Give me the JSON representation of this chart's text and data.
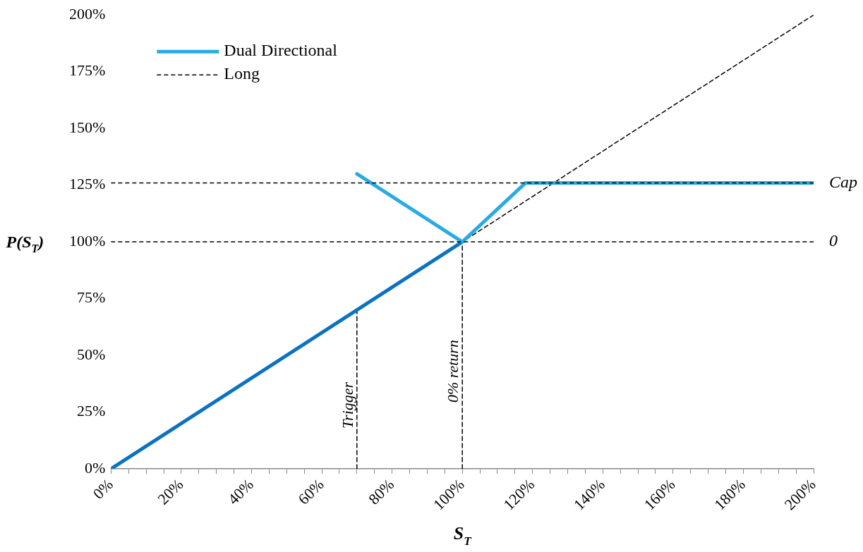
{
  "chart_data": {
    "type": "line",
    "xlabel": "S$_{T}$",
    "ylabel": "P(S$_{T}$)",
    "series": [
      {
        "name": "Dual Directional",
        "color": "#29abe2",
        "x": [
          70,
          100,
          118,
          200
        ],
        "values": [
          130,
          100,
          126,
          126
        ],
        "line_style": "solid"
      },
      {
        "color": "#0b72c2",
        "x": [
          0,
          100
        ],
        "values": [
          0,
          100
        ],
        "line_style": "solid"
      },
      {
        "name": "Long",
        "color": "#000000",
        "x": [
          0,
          200
        ],
        "values": [
          0,
          200
        ],
        "line_style": "dashed"
      },
      {
        "color": "#000000",
        "x": [
          70,
          70
        ],
        "values": [
          0,
          70
        ],
        "line_style": "dashed"
      },
      {
        "color": "#000000",
        "x": [
          100,
          100
        ],
        "values": [
          0,
          100
        ],
        "line_style": "dashed"
      }
    ],
    "xlim": [
      0,
      200
    ],
    "xticks": [
      {
        "value": 0,
        "label": "0%"
      },
      {
        "value": 5,
        "label": null
      },
      {
        "value": 10,
        "label": null
      },
      {
        "value": 15,
        "label": null
      },
      {
        "value": 20,
        "label": "20%"
      },
      {
        "value": 25,
        "label": null
      },
      {
        "value": 30,
        "label": null
      },
      {
        "value": 35,
        "label": null
      },
      {
        "value": 40,
        "label": "40%"
      },
      {
        "value": 45,
        "label": null
      },
      {
        "value": 50,
        "label": null
      },
      {
        "value": 55,
        "label": null
      },
      {
        "value": 60,
        "label": "60%"
      },
      {
        "value": 65,
        "label": null
      },
      {
        "value": 70,
        "label": null
      },
      {
        "value": 75,
        "label": null
      },
      {
        "value": 80,
        "label": "80%"
      },
      {
        "value": 85,
        "label": null
      },
      {
        "value": 90,
        "label": null
      },
      {
        "value": 95,
        "label": null
      },
      {
        "value": 100,
        "label": "100%"
      },
      {
        "value": 105,
        "label": null
      },
      {
        "value": 110,
        "label": null
      },
      {
        "value": 115,
        "label": null
      },
      {
        "value": 120,
        "label": "120%"
      },
      {
        "value": 125,
        "label": null
      },
      {
        "value": 130,
        "label": null
      },
      {
        "value": 135,
        "label": null
      },
      {
        "value": 140,
        "label": "140%"
      },
      {
        "value": 145,
        "label": null
      },
      {
        "value": 150,
        "label": null
      },
      {
        "value": 155,
        "label": null
      },
      {
        "value": 160,
        "label": "160%"
      },
      {
        "value": 165,
        "label": null
      },
      {
        "value": 170,
        "label": null
      },
      {
        "value": 175,
        "label": null
      },
      {
        "value": 180,
        "label": "180%"
      },
      {
        "value": 185,
        "label": null
      },
      {
        "value": 190,
        "label": null
      },
      {
        "value": 195,
        "label": null
      },
      {
        "value": 200,
        "label": "200%"
      }
    ],
    "ylim": [
      0,
      200
    ],
    "yticks": [
      {
        "value": 0,
        "label": "0%"
      },
      {
        "value": 25,
        "label": "25%"
      },
      {
        "value": 50,
        "label": "50%"
      },
      {
        "value": 75,
        "label": "75%"
      },
      {
        "value": 100,
        "label": "100%"
      },
      {
        "value": 125,
        "label": "125%"
      },
      {
        "value": 150,
        "label": "150%"
      },
      {
        "value": 175,
        "label": "175%"
      },
      {
        "value": 200,
        "label": "200%"
      }
    ],
    "ref_lines": [
      {
        "axis": "y",
        "value": 126,
        "label": "Cap",
        "color": "#000000",
        "line_style": "dashed"
      },
      {
        "axis": "y",
        "value": 100,
        "color": "#000000",
        "line_style": "dashed"
      }
    ],
    "annotations": [
      {
        "text": "Trigger",
        "x": 70,
        "y": 28
      },
      {
        "text": "0% return",
        "x": 100,
        "y": 43
      },
      {
        "text": "0",
        "x": 200,
        "y": 100
      }
    ],
    "legend": "top left",
    "grid": false,
    "marker": "none"
  }
}
